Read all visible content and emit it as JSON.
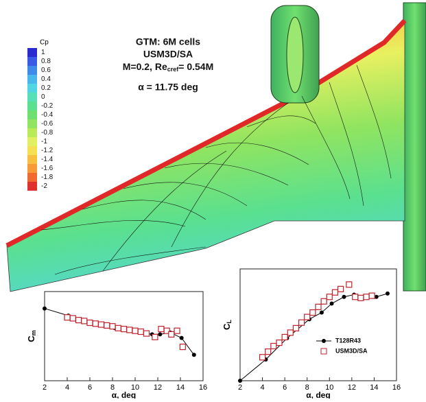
{
  "annotation": {
    "lines": [
      "GTM: 6M cells",
      "USM3D/SA"
    ],
    "mach": "M=0.2,  Re",
    "re_sub": "cref",
    "re_value": "= 0.54M",
    "alpha": "α = 11.75 deg"
  },
  "colorbar": {
    "title": "Cp",
    "ticks": [
      1,
      0.8,
      0.6,
      0.4,
      0.2,
      0,
      -0.2,
      -0.4,
      -0.6,
      -0.8,
      -1,
      -1.2,
      -1.4,
      -1.6,
      -1.8,
      -2
    ],
    "colors": [
      "#2a2ad0",
      "#3a5ae6",
      "#3f8ae8",
      "#48b8ec",
      "#50d6e2",
      "#55e0b8",
      "#5ae090",
      "#6ee070",
      "#90e460",
      "#b8ea5a",
      "#e0f060",
      "#f4e050",
      "#f8c040",
      "#f89a38",
      "#f06a30",
      "#e03030"
    ]
  },
  "chart_data": [
    {
      "type": "line",
      "ylabel": "C",
      "ylabel_sub": "m",
      "xlabel": "α, deg",
      "xlim": [
        2,
        16
      ],
      "xticks": [
        2,
        4,
        6,
        8,
        10,
        12,
        14,
        16
      ],
      "ylim": [
        0,
        1
      ],
      "series": [
        {
          "name": "T128R43",
          "color": "#000000",
          "marker": "circle",
          "line": true,
          "x": [
            2,
            4.1,
            6.2,
            8.2,
            10.1,
            11.5,
            12.2,
            13.1,
            14.1,
            15.2
          ],
          "values": [
            0.81,
            0.73,
            0.65,
            0.59,
            0.55,
            0.52,
            0.52,
            0.54,
            0.48,
            0.29
          ]
        },
        {
          "name": "USM3D/SA",
          "color": "#c0202a",
          "marker": "square",
          "line": false,
          "x": [
            4,
            4.5,
            5,
            5.5,
            6,
            6.5,
            7,
            7.5,
            8,
            8.5,
            9,
            9.5,
            10,
            10.5,
            11,
            11.75,
            12.3,
            12.8,
            13.2,
            13.7,
            14.2
          ],
          "values": [
            0.71,
            0.7,
            0.68,
            0.67,
            0.65,
            0.64,
            0.63,
            0.62,
            0.61,
            0.59,
            0.58,
            0.57,
            0.56,
            0.55,
            0.53,
            0.49,
            0.58,
            0.56,
            0.52,
            0.56,
            0.38
          ]
        }
      ]
    },
    {
      "type": "line",
      "ylabel": "C",
      "ylabel_sub": "L",
      "xlabel": "α, deg",
      "xlim": [
        2,
        16
      ],
      "xticks": [
        2,
        4,
        6,
        8,
        10,
        12,
        14,
        16
      ],
      "ylim": [
        0,
        1
      ],
      "legend": "lower right",
      "series": [
        {
          "name": "T128R43",
          "color": "#000000",
          "marker": "circle",
          "line": true,
          "x": [
            2,
            4.3,
            6.2,
            8.2,
            9.3,
            10.2,
            11.3,
            12.2,
            13.2,
            14.2,
            15.2
          ],
          "values": [
            0,
            0.19,
            0.38,
            0.55,
            0.61,
            0.69,
            0.75,
            0.77,
            0.75,
            0.75,
            0.78
          ]
        },
        {
          "name": "USM3D/SA",
          "color": "#c0202a",
          "marker": "square",
          "line": false,
          "x": [
            4,
            4.5,
            5,
            5.5,
            6,
            6.5,
            7,
            7.5,
            8,
            8.5,
            9,
            9.5,
            10,
            10.5,
            11,
            11.75,
            12.3,
            12.8,
            13.3,
            13.8
          ],
          "values": [
            0.21,
            0.26,
            0.31,
            0.34,
            0.39,
            0.43,
            0.47,
            0.52,
            0.57,
            0.61,
            0.66,
            0.71,
            0.75,
            0.79,
            0.82,
            0.86,
            0.75,
            0.74,
            0.75,
            0.76
          ]
        }
      ]
    }
  ]
}
